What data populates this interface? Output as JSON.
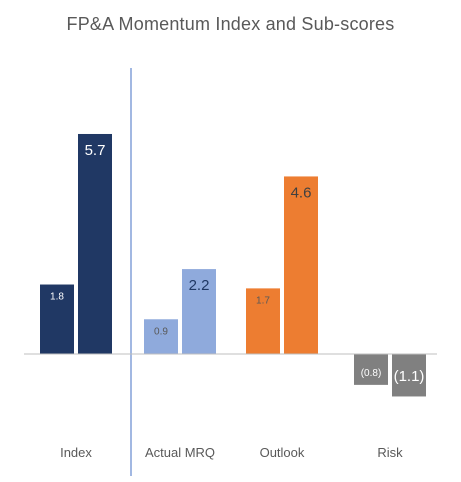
{
  "chart_data": {
    "type": "bar",
    "title": "FP&A Momentum Index and Sub-scores",
    "xlabel": "",
    "ylabel": "",
    "categories": [
      "Index",
      "Actual MRQ",
      "Outlook",
      "Risk"
    ],
    "ylim": [
      -1.6,
      6.5
    ],
    "grid": false,
    "legend": "none",
    "bars": [
      {
        "category": "Index",
        "slot": 0,
        "value": 1.8,
        "label": "1.8",
        "color": "#203864",
        "label_color": "#ffffff",
        "label_size": "small"
      },
      {
        "category": "Index",
        "slot": 1,
        "value": 5.7,
        "label": "5.7",
        "color": "#203864",
        "label_color": "#ffffff",
        "label_size": "large"
      },
      {
        "category": "Actual MRQ",
        "slot": 0,
        "value": 0.9,
        "label": "0.9",
        "color": "#8faadc",
        "label_color": "#595959",
        "label_size": "small"
      },
      {
        "category": "Actual MRQ",
        "slot": 1,
        "value": 2.2,
        "label": "2.2",
        "color": "#8faadc",
        "label_color": "#203864",
        "label_size": "large"
      },
      {
        "category": "Outlook",
        "slot": 0,
        "value": 1.7,
        "label": "1.7",
        "color": "#ed7d31",
        "label_color": "#595959",
        "label_size": "small"
      },
      {
        "category": "Outlook",
        "slot": 1,
        "value": 4.6,
        "label": "4.6",
        "color": "#ed7d31",
        "label_color": "#404040",
        "label_size": "large"
      },
      {
        "category": "Risk",
        "slot": 0,
        "value": -0.8,
        "label": "(0.8)",
        "color": "#808080",
        "label_color": "#ffffff",
        "label_size": "small"
      },
      {
        "category": "Risk",
        "slot": 1,
        "value": -1.1,
        "label": "(1.1)",
        "color": "#808080",
        "label_color": "#ffffff",
        "label_size": "large"
      }
    ],
    "colors": {
      "index": "#203864",
      "actual_mrq": "#8faadc",
      "outlook": "#ed7d31",
      "risk": "#808080",
      "axis": "#bfbfbf",
      "divider": "#4472c4",
      "text": "#595959"
    }
  }
}
